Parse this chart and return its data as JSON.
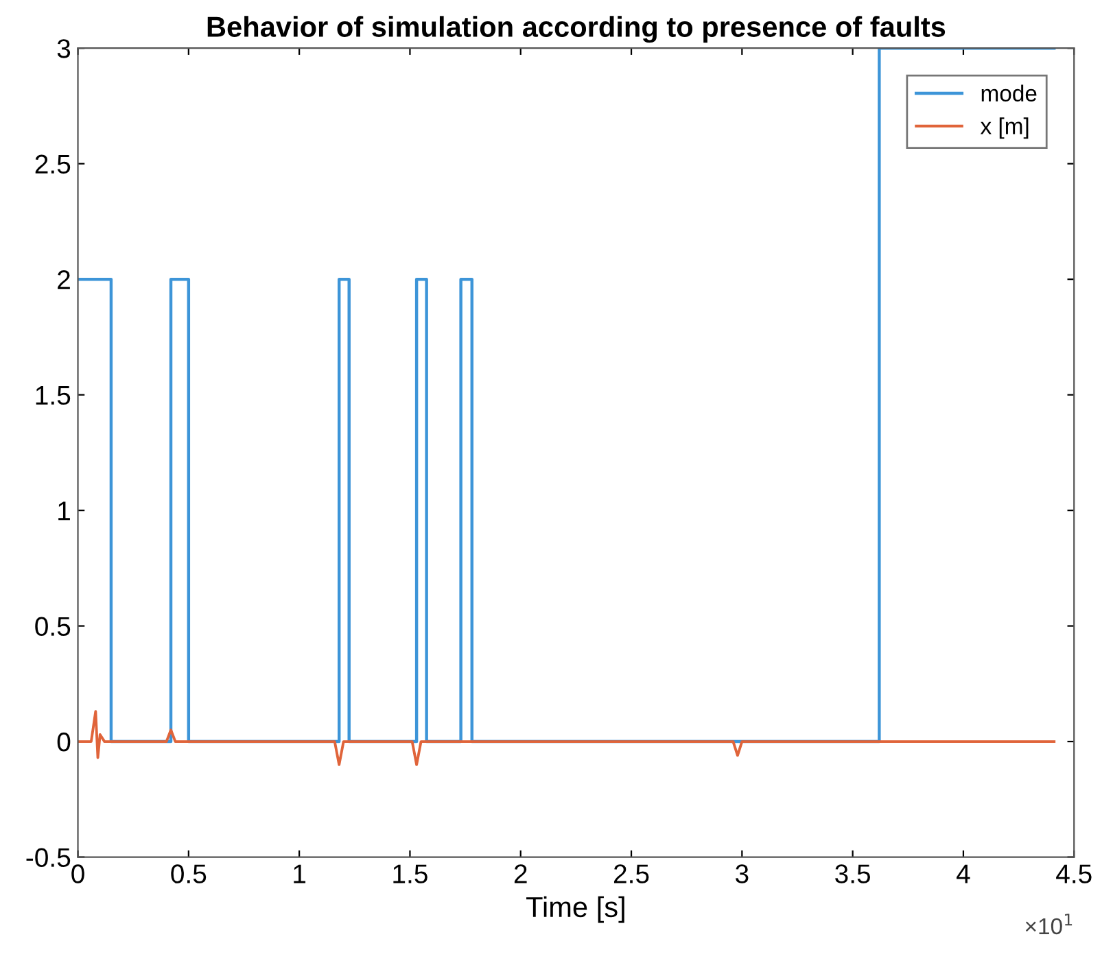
{
  "chart_data": {
    "type": "line",
    "title": "Behavior of simulation according to presence of faults",
    "xlabel": "Time [s]",
    "annotations": [
      "×10$^{1}$"
    ],
    "series": [
      {
        "name": "mode",
        "type": "step",
        "color": "#3d95d8",
        "x": [
          0,
          0.15,
          0.42,
          0.5,
          1.18,
          1.225,
          1.53,
          1.575,
          1.73,
          1.78,
          3.62,
          4.41
        ],
        "values": [
          2,
          0,
          2,
          0,
          2,
          0,
          2,
          0,
          2,
          0,
          3,
          3
        ]
      },
      {
        "name": "x [m]",
        "color": "#e0643a",
        "x": [
          0,
          0.06,
          0.08,
          0.09,
          0.1,
          0.12,
          0.4,
          0.42,
          0.44,
          1.16,
          1.18,
          1.2,
          1.51,
          1.53,
          1.55,
          2.96,
          2.98,
          3.0,
          4.41
        ],
        "values": [
          0,
          0,
          0.13,
          -0.07,
          0.03,
          0,
          0,
          0.05,
          0,
          0,
          -0.1,
          0,
          0,
          -0.1,
          0,
          0,
          -0.06,
          0,
          0
        ]
      }
    ],
    "xlim": [
      0,
      4.5
    ],
    "xticks": [
      0,
      0.5,
      1,
      1.5,
      2,
      2.5,
      3,
      3.5,
      4,
      4.5
    ],
    "ylim": [
      -0.5,
      3
    ],
    "yticks": [
      -0.5,
      0,
      0.5,
      1,
      1.5,
      2,
      2.5,
      3
    ],
    "legend": "top right",
    "grid": false
  }
}
